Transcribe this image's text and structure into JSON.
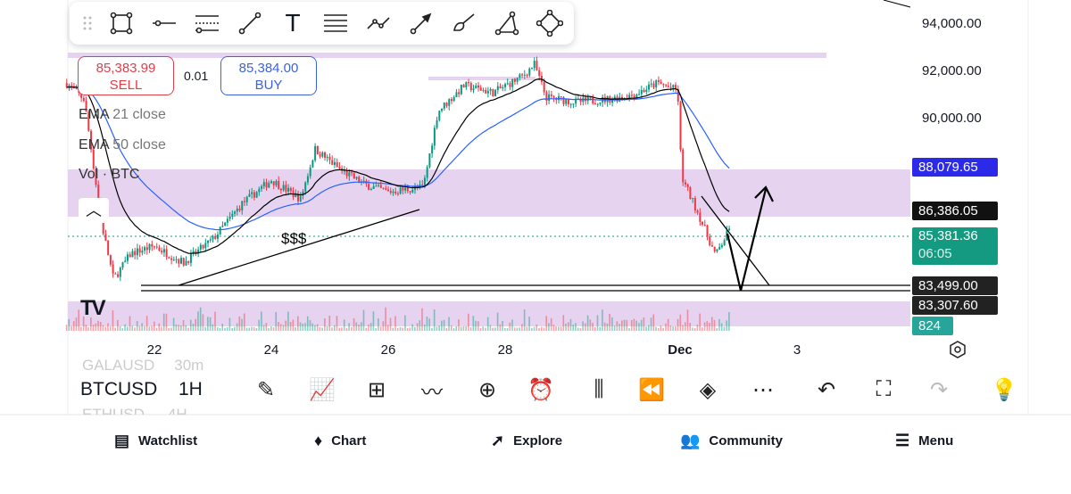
{
  "toolbar_icons": [
    "drag-handle-icon",
    "rectangle-icon",
    "horizontal-line-icon",
    "parallel-channel-icon",
    "trend-line-icon",
    "text-icon",
    "fib-retracement-icon",
    "path-icon",
    "arrow-icon",
    "brush-icon",
    "polyline-icon",
    "rotated-rectangle-icon"
  ],
  "text_tool_label": "T",
  "trade": {
    "sell_price": "85,383.99",
    "sell_label": "SELL",
    "spread": "0.01",
    "buy_price": "85,384.00",
    "buy_label": "BUY"
  },
  "legend": {
    "ema21_name": "EMA",
    "ema21_params": "21 close",
    "ema50_name": "EMA",
    "ema50_params": "50 close",
    "vol_name": "Vol · BTC"
  },
  "annotation": "$$$",
  "price_axis": {
    "labels": [
      "94,000.00",
      "92,000.00",
      "90,000.00"
    ],
    "ema50_tag": "88,079.65",
    "ema21_tag": "86,386.05",
    "last_price": "85,381.36",
    "countdown": "06:05",
    "line1_tag": "83,499.00",
    "line2_tag": "83,307.60",
    "volume_tag": "824"
  },
  "time_axis": [
    "22",
    "24",
    "26",
    "28",
    "Dec",
    "3"
  ],
  "colors": {
    "up": "#089981",
    "down": "#f23645",
    "ema21": "#000000",
    "ema50": "#2962ff",
    "zone": "#e6d3ef",
    "ema50_tag": "#2a2ae8",
    "last": "#139a80"
  },
  "price_path": [
    [
      20.5,
      91500
    ],
    [
      20.8,
      90800
    ],
    [
      21.1,
      85500
    ],
    [
      21.3,
      83200
    ],
    [
      21.6,
      84300
    ],
    [
      22,
      84600
    ],
    [
      22.5,
      83900
    ],
    [
      23,
      84900
    ],
    [
      23.5,
      86400
    ],
    [
      24,
      87400
    ],
    [
      24.5,
      86600
    ],
    [
      24.75,
      88700
    ],
    [
      25.2,
      87800
    ],
    [
      25.6,
      87200
    ],
    [
      26,
      86900
    ],
    [
      26.6,
      87100
    ],
    [
      26.85,
      90300
    ],
    [
      27.3,
      91400
    ],
    [
      27.8,
      91100
    ],
    [
      28.3,
      91800
    ],
    [
      28.5,
      92300
    ],
    [
      28.7,
      90900
    ],
    [
      29.2,
      90700
    ],
    [
      29.7,
      90800
    ],
    [
      30.2,
      91000
    ],
    [
      30.6,
      91500
    ],
    [
      30.95,
      91200
    ],
    [
      31.02,
      87500
    ],
    [
      31.3,
      86000
    ],
    [
      31.6,
      84200
    ],
    [
      31.85,
      85380
    ]
  ],
  "symbol": {
    "ticker": "BTCUSD",
    "interval": "1H",
    "prev_ticker": "GALAUSD",
    "prev_interval": "30m",
    "next_ticker": "ETHUSD",
    "next_interval": "4H"
  },
  "bottom_icons": [
    "drawing-pen-icon",
    "indicators-icon",
    "layouts-grid-icon",
    "patterns-icon",
    "add-icon",
    "alert-clock-icon",
    "candles-icon",
    "replay-icon",
    "layers-icon",
    "more-icon",
    "undo-icon",
    "fullscreen-icon",
    "redo-icon",
    "ideas-bulb-icon"
  ],
  "nav": [
    {
      "label": "Watchlist",
      "icon": "watchlist-icon"
    },
    {
      "label": "Chart",
      "icon": "chart-icon"
    },
    {
      "label": "Explore",
      "icon": "explore-icon"
    },
    {
      "label": "Community",
      "icon": "community-icon"
    },
    {
      "label": "Menu",
      "icon": "menu-icon"
    }
  ]
}
